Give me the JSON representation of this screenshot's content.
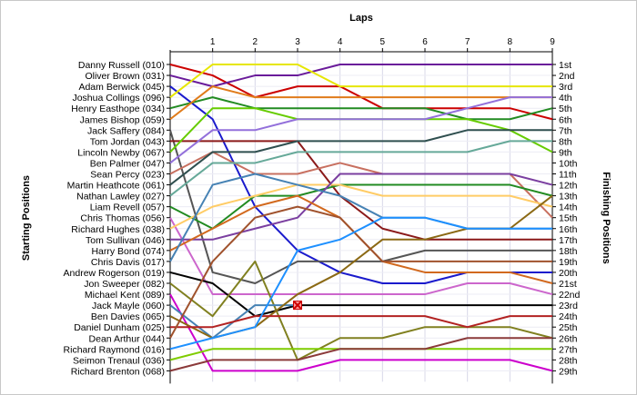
{
  "chart_data": {
    "type": "line",
    "title": "Laps",
    "xlabel": "Laps",
    "ylabel_left": "Starting Positions",
    "ylabel_right": "Finishing Positions",
    "x_ticks": [
      "1",
      "2",
      "3",
      "4",
      "5",
      "6",
      "7",
      "8",
      "9"
    ],
    "grid": true,
    "starting_positions": [
      "Danny Russell (010)",
      "Oliver Brown (031)",
      "Adam Berwick (045)",
      "Joshua Collings (096)",
      "Henry Easthope (034)",
      "James Bishop (059)",
      "Jack Saffery (084)",
      "Tom Jordan (043)",
      "Lincoln Newby (067)",
      "Ben Palmer (047)",
      "Sean Percy (023)",
      "Martin Heathcote (061)",
      "Nathan Lawley (027)",
      "Liam Revell (057)",
      "Chris Thomas (056)",
      "Richard Hughes (038)",
      "Tom Sullivan (046)",
      "Harry Bond (074)",
      "Chris Davis (017)",
      "Andrew Rogerson (019)",
      "Jon Sweeper (082)",
      "Michael Kent (089)",
      "Jack Mayle (060)",
      "Ben Davies (065)",
      "Daniel Dunham (025)",
      "Dean Arthur (044)",
      "Richard Raymond (016)",
      "Seimon Trenaul (036)",
      "Richard Brenton (068)"
    ],
    "finishing_positions": [
      "1st",
      "2nd",
      "3rd",
      "4th",
      "5th",
      "6th",
      "7th",
      "8th",
      "9th",
      "10th",
      "11th",
      "12th",
      "13th",
      "14th",
      "15th",
      "16th",
      "17th",
      "18th",
      "19th",
      "20th",
      "21st",
      "22nd",
      "23rd",
      "24th",
      "25th",
      "26th",
      "27th",
      "28th",
      "29th"
    ],
    "series": [
      {
        "color": "#cc0000",
        "values": [
          1,
          2,
          4,
          3,
          3,
          5,
          5,
          5,
          5,
          6
        ]
      },
      {
        "color": "#6a1b9a",
        "values": [
          2,
          3,
          2,
          2,
          1,
          1,
          1,
          1,
          1,
          1
        ]
      },
      {
        "color": "#1a1acc",
        "values": [
          3,
          6,
          14,
          18,
          20,
          21,
          21,
          20,
          20,
          20
        ]
      },
      {
        "color": "#e6e600",
        "values": [
          4,
          1,
          1,
          1,
          3,
          3,
          3,
          3,
          3,
          3
        ]
      },
      {
        "color": "#228b22",
        "values": [
          5,
          4,
          5,
          5,
          5,
          5,
          5,
          6,
          6,
          5
        ]
      },
      {
        "color": "#e07b1a",
        "values": [
          6,
          3,
          4,
          4,
          4,
          4,
          4,
          4,
          4,
          4
        ]
      },
      {
        "color": "#555555",
        "values": [
          7,
          20,
          21,
          19,
          19,
          19,
          18,
          18,
          18,
          18
        ]
      },
      {
        "color": "#8b1a1a",
        "values": [
          8,
          8,
          8,
          8,
          13,
          16,
          17,
          17,
          17,
          17
        ]
      },
      {
        "color": "#66cc00",
        "values": [
          9,
          5,
          5,
          6,
          6,
          6,
          6,
          6,
          7,
          9
        ]
      },
      {
        "color": "#9370db",
        "values": [
          10,
          7,
          7,
          6,
          6,
          6,
          6,
          5,
          4,
          4
        ]
      },
      {
        "color": "#c87060",
        "values": [
          11,
          9,
          11,
          11,
          10,
          11,
          11,
          11,
          11,
          15
        ]
      },
      {
        "color": "#2f4f4f",
        "values": [
          12,
          9,
          9,
          8,
          8,
          8,
          8,
          7,
          7,
          7
        ]
      },
      {
        "color": "#66a999",
        "values": [
          13,
          10,
          10,
          9,
          9,
          9,
          9,
          9,
          8,
          8
        ]
      },
      {
        "color": "#228b22",
        "values": [
          14,
          16,
          13,
          13,
          12,
          12,
          12,
          12,
          12,
          13
        ]
      },
      {
        "color": "#cc66cc",
        "values": [
          15,
          22,
          22,
          22,
          22,
          22,
          22,
          21,
          21,
          22
        ]
      },
      {
        "color": "#ffcc66",
        "values": [
          16,
          14,
          13,
          12,
          12,
          13,
          13,
          13,
          13,
          14
        ]
      },
      {
        "color": "#7b3fa0",
        "values": [
          17,
          17,
          16,
          15,
          11,
          11,
          11,
          11,
          11,
          12
        ]
      },
      {
        "color": "#d2691e",
        "values": [
          18,
          16,
          14,
          13,
          15,
          19,
          20,
          20,
          20,
          21
        ]
      },
      {
        "color": "#4682b4",
        "values": [
          19,
          12,
          11,
          12,
          13,
          15,
          15,
          16,
          16,
          16
        ]
      },
      {
        "color": "#000000",
        "values": [
          20,
          21,
          24,
          23,
          23,
          23,
          23,
          23,
          23,
          23
        ]
      },
      {
        "color": "#808020",
        "values": [
          21,
          24,
          19,
          28,
          26,
          26,
          25,
          25,
          25,
          26
        ]
      },
      {
        "color": "#cc00cc",
        "values": [
          22,
          29,
          29,
          29,
          28,
          28,
          28,
          28,
          28,
          29
        ]
      },
      {
        "color": "#4682b4",
        "values": [
          23,
          26,
          23,
          23
        ]
      },
      {
        "color": "#8b6914",
        "values": [
          24,
          26,
          25,
          22,
          20,
          17,
          17,
          16,
          16,
          13
        ]
      },
      {
        "color": "#b22222",
        "values": [
          25,
          25,
          24,
          24,
          24,
          24,
          24,
          25,
          24,
          24
        ]
      },
      {
        "color": "#a0522d",
        "values": [
          26,
          19,
          15,
          14,
          15,
          19,
          19,
          19,
          19,
          19
        ]
      },
      {
        "color": "#1e90ff",
        "values": [
          27,
          26,
          25,
          18,
          17,
          15,
          15,
          16,
          16,
          16
        ]
      },
      {
        "color": "#7fcc00",
        "values": [
          28,
          27,
          27,
          27,
          27,
          27,
          27,
          27,
          27,
          27
        ]
      },
      {
        "color": "#8b3a3a",
        "values": [
          29,
          28,
          28,
          28,
          27,
          27,
          27,
          26,
          26,
          26
        ]
      }
    ],
    "retired_marker": {
      "lap": 3,
      "position": 23,
      "color": "#cc0000"
    }
  }
}
